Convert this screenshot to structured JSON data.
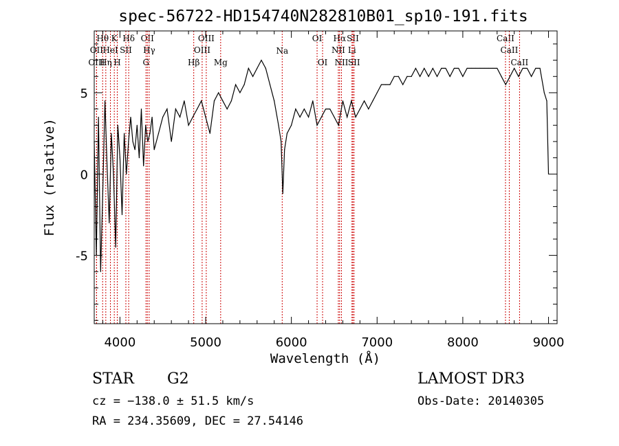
{
  "chart_data": {
    "type": "line",
    "title": "spec-56722-HD154740N282810B01_sp10-191.fits",
    "xlabel": "Wavelength (Å)",
    "ylabel": "Flux (relative)",
    "xlim": [
      3700,
      9100
    ],
    "ylim": [
      -9.2,
      8.8
    ],
    "x_ticks": [
      4000,
      5000,
      6000,
      7000,
      8000,
      9000
    ],
    "y_ticks": [
      -5,
      0,
      5
    ],
    "grid": false,
    "legend": "none",
    "series_color": "#000000",
    "line_color": "#cc0000",
    "spectral_lines": [
      {
        "label": "Hθ",
        "x": 3798,
        "row": 0
      },
      {
        "label": "K",
        "x": 3934,
        "row": 0
      },
      {
        "label": "Hδ",
        "x": 4102,
        "row": 0
      },
      {
        "label": "OII",
        "x": 4320,
        "row": 0
      },
      {
        "label": "OIII",
        "x": 5007,
        "row": 0
      },
      {
        "label": "OI",
        "x": 6300,
        "row": 0
      },
      {
        "label": "Hα",
        "x": 6563,
        "row": 0
      },
      {
        "label": "SII",
        "x": 6717,
        "row": 0
      },
      {
        "label": "CaII",
        "x": 8498,
        "row": 0
      },
      {
        "label": "OII",
        "x": 3727,
        "row": 1
      },
      {
        "label": "HeI",
        "x": 3889,
        "row": 1
      },
      {
        "label": "SII",
        "x": 4069,
        "row": 1
      },
      {
        "label": "Hγ",
        "x": 4341,
        "row": 1
      },
      {
        "label": "OIII",
        "x": 4959,
        "row": 1
      },
      {
        "label": "NII",
        "x": 6548,
        "row": 1
      },
      {
        "label": "Li",
        "x": 6707,
        "row": 1
      },
      {
        "label": "CaII",
        "x": 8542,
        "row": 1
      },
      {
        "label": "OIII",
        "x": 3727,
        "row": 2
      },
      {
        "label": "Hη",
        "x": 3835,
        "row": 2
      },
      {
        "label": "H",
        "x": 3969,
        "row": 2
      },
      {
        "label": "G",
        "x": 4304,
        "row": 2
      },
      {
        "label": "Hβ",
        "x": 4861,
        "row": 2
      },
      {
        "label": "Mg",
        "x": 5175,
        "row": 2
      },
      {
        "label": "Na",
        "x": 5893,
        "row": 0.8
      },
      {
        "label": "OI",
        "x": 6364,
        "row": 2
      },
      {
        "label": "NII",
        "x": 6584,
        "row": 2
      },
      {
        "label": "SII",
        "x": 6731,
        "row": 2
      },
      {
        "label": "CaII",
        "x": 8662,
        "row": 2
      }
    ],
    "series": [
      {
        "x": [
          3700,
          3725,
          3750,
          3775,
          3800,
          3825,
          3850,
          3875,
          3900,
          3925,
          3950,
          3975,
          4000,
          4025,
          4050,
          4075,
          4100,
          4125,
          4150,
          4175,
          4200,
          4225,
          4250,
          4275,
          4300,
          4325,
          4350,
          4375,
          4400,
          4450,
          4500,
          4550,
          4600,
          4650,
          4700,
          4750,
          4800,
          4850,
          4900,
          4950,
          5000,
          5050,
          5100,
          5150,
          5200,
          5250,
          5300,
          5350,
          5400,
          5450,
          5500,
          5550,
          5600,
          5650,
          5700,
          5750,
          5800,
          5850,
          5880,
          5900,
          5920,
          5950,
          6000,
          6050,
          6100,
          6150,
          6200,
          6250,
          6300,
          6350,
          6400,
          6450,
          6500,
          6550,
          6600,
          6650,
          6700,
          6750,
          6800,
          6850,
          6900,
          6950,
          7000,
          7050,
          7100,
          7150,
          7200,
          7250,
          7300,
          7350,
          7400,
          7450,
          7500,
          7550,
          7600,
          7650,
          7700,
          7750,
          7800,
          7850,
          7900,
          7950,
          8000,
          8050,
          8100,
          8150,
          8200,
          8250,
          8300,
          8350,
          8400,
          8450,
          8500,
          8550,
          8600,
          8650,
          8700,
          8750,
          8800,
          8850,
          8900,
          8950,
          8980,
          9000
        ],
        "y": [
          2.0,
          -5.0,
          3.5,
          -6.0,
          -1.0,
          4.5,
          0.5,
          -3.0,
          2.5,
          0.0,
          -4.5,
          3.0,
          1.0,
          -2.5,
          2.5,
          0.0,
          2.0,
          3.5,
          2.0,
          1.5,
          3.0,
          1.0,
          4.0,
          0.5,
          3.0,
          2.0,
          2.5,
          3.5,
          1.5,
          2.5,
          3.5,
          4.0,
          2.0,
          4.0,
          3.5,
          4.5,
          3.0,
          3.5,
          4.0,
          4.5,
          3.5,
          2.5,
          4.5,
          5.0,
          4.5,
          4.0,
          4.5,
          5.5,
          5.0,
          5.5,
          6.5,
          6.0,
          6.5,
          7.0,
          6.5,
          5.5,
          4.5,
          3.0,
          2.0,
          -1.2,
          1.5,
          2.5,
          3.0,
          4.0,
          3.5,
          4.0,
          3.5,
          4.5,
          3.0,
          3.5,
          4.0,
          4.0,
          3.5,
          3.0,
          4.5,
          3.5,
          4.5,
          3.5,
          4.0,
          4.5,
          4.0,
          4.5,
          5.0,
          5.5,
          5.5,
          5.5,
          6.0,
          6.0,
          5.5,
          6.0,
          6.0,
          6.5,
          6.0,
          6.5,
          6.0,
          6.5,
          6.0,
          6.5,
          6.5,
          6.0,
          6.5,
          6.5,
          6.0,
          6.5,
          6.5,
          6.5,
          6.5,
          6.5,
          6.5,
          6.5,
          6.5,
          6.0,
          5.5,
          6.0,
          6.5,
          6.0,
          6.5,
          6.5,
          6.0,
          6.5,
          6.5,
          5.0,
          4.5,
          0.0
        ]
      }
    ]
  },
  "info": {
    "object_type": "STAR",
    "subclass": "G2",
    "survey": "LAMOST DR3",
    "cz": "cz = −138.0 ± 51.5 km/s",
    "obs_date": "Obs-Date: 20140305",
    "coords": "RA = 234.35609, DEC =  27.54146"
  }
}
